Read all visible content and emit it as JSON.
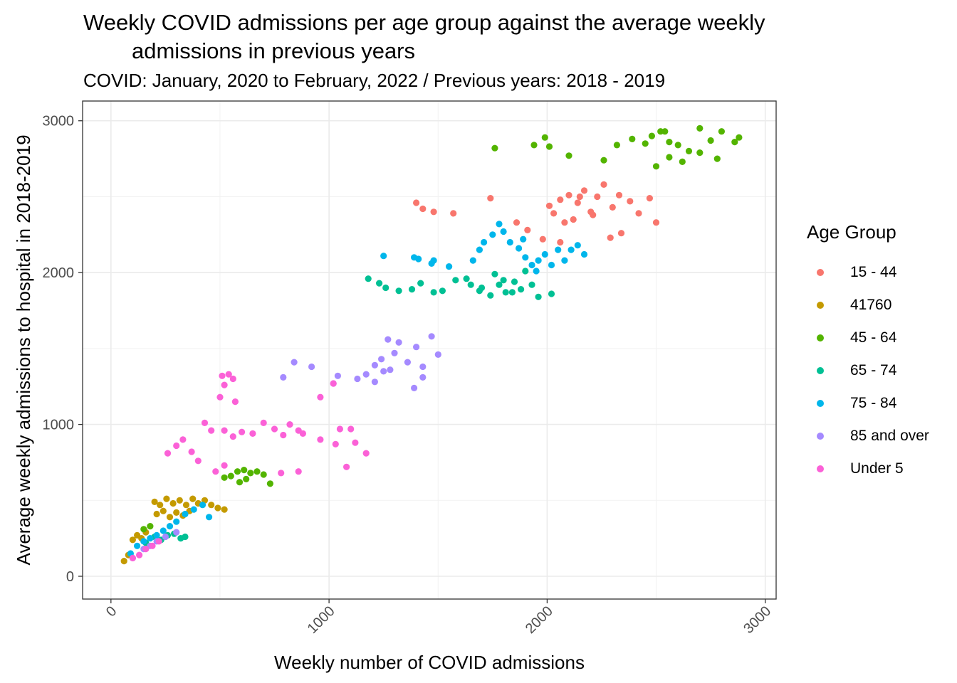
{
  "chart_data": {
    "type": "scatter",
    "title_line1": "Weekly COVID admissions per age group against the average weekly",
    "title_line2": "admissions in previous years",
    "subtitle": "COVID: January, 2020 to February, 2022 / Previous years: 2018 - 2019",
    "xlabel": "Weekly number of COVID admissions",
    "ylabel": "Average weekly admissions to hospital in 2018-2019",
    "xlim": [
      -130,
      3050
    ],
    "ylim": [
      -150,
      3130
    ],
    "x_ticks": [
      0,
      1000,
      2000,
      3000
    ],
    "y_ticks": [
      0,
      1000,
      2000,
      3000
    ],
    "x_tick_labels": [
      "0",
      "1000",
      "2000",
      "3000"
    ],
    "y_tick_labels": [
      "0",
      "1000",
      "2000",
      "3000"
    ],
    "grid": true,
    "legend_title": "Age Group",
    "legend_position": "right",
    "series": [
      {
        "name": "15 - 44",
        "color": "#F8766D",
        "points": [
          [
            1400,
            2460
          ],
          [
            1430,
            2420
          ],
          [
            1480,
            2400
          ],
          [
            1570,
            2390
          ],
          [
            1740,
            2490
          ],
          [
            1860,
            2330
          ],
          [
            1910,
            2280
          ],
          [
            1980,
            2220
          ],
          [
            2030,
            2390
          ],
          [
            2060,
            2480
          ],
          [
            2100,
            2510
          ],
          [
            2140,
            2460
          ],
          [
            2170,
            2540
          ],
          [
            2200,
            2400
          ],
          [
            2230,
            2500
          ],
          [
            2260,
            2580
          ],
          [
            2300,
            2430
          ],
          [
            2330,
            2510
          ],
          [
            2380,
            2470
          ],
          [
            2420,
            2390
          ],
          [
            2470,
            2490
          ],
          [
            2500,
            2330
          ],
          [
            2340,
            2260
          ],
          [
            2290,
            2230
          ],
          [
            2120,
            2350
          ],
          [
            2060,
            2200
          ],
          [
            2010,
            2440
          ],
          [
            2080,
            2330
          ],
          [
            2150,
            2500
          ],
          [
            2210,
            2380
          ]
        ]
      },
      {
        "name": "41760",
        "color": "#C49A00",
        "points": [
          [
            200,
            490
          ],
          [
            225,
            470
          ],
          [
            255,
            510
          ],
          [
            285,
            480
          ],
          [
            315,
            500
          ],
          [
            345,
            470
          ],
          [
            375,
            510
          ],
          [
            400,
            480
          ],
          [
            430,
            500
          ],
          [
            460,
            470
          ],
          [
            490,
            450
          ],
          [
            520,
            440
          ],
          [
            210,
            410
          ],
          [
            240,
            430
          ],
          [
            270,
            390
          ],
          [
            300,
            420
          ],
          [
            330,
            400
          ],
          [
            360,
            430
          ],
          [
            100,
            240
          ],
          [
            120,
            270
          ],
          [
            140,
            250
          ],
          [
            160,
            290
          ],
          [
            60,
            100
          ],
          [
            80,
            140
          ]
        ]
      },
      {
        "name": "45 - 64",
        "color": "#53B400",
        "points": [
          [
            1760,
            2820
          ],
          [
            1940,
            2840
          ],
          [
            1990,
            2890
          ],
          [
            2010,
            2830
          ],
          [
            2100,
            2770
          ],
          [
            2260,
            2740
          ],
          [
            2320,
            2840
          ],
          [
            2390,
            2880
          ],
          [
            2450,
            2850
          ],
          [
            2480,
            2900
          ],
          [
            2520,
            2930
          ],
          [
            2560,
            2860
          ],
          [
            2600,
            2840
          ],
          [
            2650,
            2800
          ],
          [
            2700,
            2950
          ],
          [
            2750,
            2870
          ],
          [
            2800,
            2930
          ],
          [
            2860,
            2860
          ],
          [
            2880,
            2890
          ],
          [
            2780,
            2750
          ],
          [
            2700,
            2790
          ],
          [
            2620,
            2730
          ],
          [
            2560,
            2760
          ],
          [
            2500,
            2700
          ],
          [
            2540,
            2930
          ],
          [
            550,
            660
          ],
          [
            580,
            690
          ],
          [
            610,
            700
          ],
          [
            640,
            680
          ],
          [
            670,
            690
          ],
          [
            700,
            670
          ],
          [
            730,
            610
          ],
          [
            620,
            640
          ],
          [
            590,
            620
          ],
          [
            520,
            650
          ],
          [
            150,
            310
          ],
          [
            180,
            330
          ]
        ]
      },
      {
        "name": "65 - 74",
        "color": "#00C094",
        "points": [
          [
            1180,
            1960
          ],
          [
            1230,
            1930
          ],
          [
            1260,
            1900
          ],
          [
            1320,
            1880
          ],
          [
            1380,
            1890
          ],
          [
            1420,
            1930
          ],
          [
            1480,
            1870
          ],
          [
            1520,
            1880
          ],
          [
            1580,
            1950
          ],
          [
            1630,
            1960
          ],
          [
            1650,
            1920
          ],
          [
            1700,
            1900
          ],
          [
            1740,
            1850
          ],
          [
            1780,
            1920
          ],
          [
            1810,
            1870
          ],
          [
            1850,
            1940
          ],
          [
            1880,
            1890
          ],
          [
            1900,
            2010
          ],
          [
            1930,
            1920
          ],
          [
            1960,
            1840
          ],
          [
            2020,
            1860
          ],
          [
            1760,
            1990
          ],
          [
            1690,
            1880
          ],
          [
            1840,
            1870
          ],
          [
            1800,
            1950
          ],
          [
            200,
            260
          ],
          [
            230,
            240
          ],
          [
            260,
            270
          ],
          [
            290,
            280
          ],
          [
            320,
            250
          ],
          [
            160,
            220
          ],
          [
            340,
            260
          ]
        ]
      },
      {
        "name": "75 - 84",
        "color": "#00B6EB",
        "points": [
          [
            1250,
            2110
          ],
          [
            1390,
            2100
          ],
          [
            1410,
            2090
          ],
          [
            1470,
            2060
          ],
          [
            1550,
            2040
          ],
          [
            1660,
            2080
          ],
          [
            1690,
            2150
          ],
          [
            1710,
            2200
          ],
          [
            1750,
            2250
          ],
          [
            1780,
            2320
          ],
          [
            1800,
            2270
          ],
          [
            1830,
            2200
          ],
          [
            1870,
            2160
          ],
          [
            1900,
            2100
          ],
          [
            1930,
            2050
          ],
          [
            1960,
            2080
          ],
          [
            1990,
            2120
          ],
          [
            2020,
            2050
          ],
          [
            2050,
            2150
          ],
          [
            2080,
            2080
          ],
          [
            2110,
            2150
          ],
          [
            2140,
            2180
          ],
          [
            2170,
            2120
          ],
          [
            1950,
            2010
          ],
          [
            1890,
            2220
          ],
          [
            1480,
            2080
          ],
          [
            120,
            200
          ],
          [
            150,
            230
          ],
          [
            180,
            250
          ],
          [
            210,
            270
          ],
          [
            240,
            300
          ],
          [
            270,
            330
          ],
          [
            300,
            360
          ],
          [
            340,
            410
          ],
          [
            380,
            440
          ],
          [
            420,
            470
          ],
          [
            450,
            390
          ],
          [
            90,
            150
          ]
        ]
      },
      {
        "name": "85 and over",
        "color": "#A58AFF",
        "points": [
          [
            790,
            1310
          ],
          [
            840,
            1410
          ],
          [
            920,
            1380
          ],
          [
            1020,
            1270
          ],
          [
            1040,
            1320
          ],
          [
            1130,
            1300
          ],
          [
            1170,
            1330
          ],
          [
            1210,
            1390
          ],
          [
            1240,
            1430
          ],
          [
            1270,
            1560
          ],
          [
            1300,
            1470
          ],
          [
            1320,
            1540
          ],
          [
            1360,
            1410
          ],
          [
            1400,
            1510
          ],
          [
            1430,
            1380
          ],
          [
            1470,
            1580
          ],
          [
            1500,
            1460
          ],
          [
            1430,
            1310
          ],
          [
            1390,
            1240
          ],
          [
            1250,
            1350
          ],
          [
            1210,
            1280
          ],
          [
            1280,
            1360
          ],
          [
            150,
            180
          ],
          [
            180,
            200
          ],
          [
            210,
            230
          ],
          [
            250,
            260
          ],
          [
            300,
            290
          ],
          [
            100,
            120
          ]
        ]
      },
      {
        "name": "Under 5",
        "color": "#FB61D7",
        "points": [
          [
            510,
            1320
          ],
          [
            540,
            1330
          ],
          [
            520,
            1260
          ],
          [
            560,
            1300
          ],
          [
            500,
            1180
          ],
          [
            570,
            1150
          ],
          [
            430,
            1010
          ],
          [
            460,
            960
          ],
          [
            520,
            960
          ],
          [
            560,
            920
          ],
          [
            600,
            950
          ],
          [
            650,
            940
          ],
          [
            700,
            1010
          ],
          [
            750,
            970
          ],
          [
            790,
            930
          ],
          [
            820,
            1000
          ],
          [
            860,
            960
          ],
          [
            880,
            940
          ],
          [
            960,
            900
          ],
          [
            1050,
            970
          ],
          [
            1100,
            970
          ],
          [
            1120,
            880
          ],
          [
            1170,
            810
          ],
          [
            1030,
            870
          ],
          [
            1080,
            720
          ],
          [
            960,
            1180
          ],
          [
            1020,
            1270
          ],
          [
            260,
            810
          ],
          [
            300,
            860
          ],
          [
            330,
            900
          ],
          [
            370,
            820
          ],
          [
            400,
            760
          ],
          [
            480,
            690
          ],
          [
            520,
            730
          ],
          [
            780,
            680
          ],
          [
            860,
            690
          ],
          [
            100,
            120
          ],
          [
            130,
            140
          ],
          [
            160,
            180
          ],
          [
            190,
            200
          ],
          [
            220,
            230
          ]
        ]
      }
    ]
  }
}
